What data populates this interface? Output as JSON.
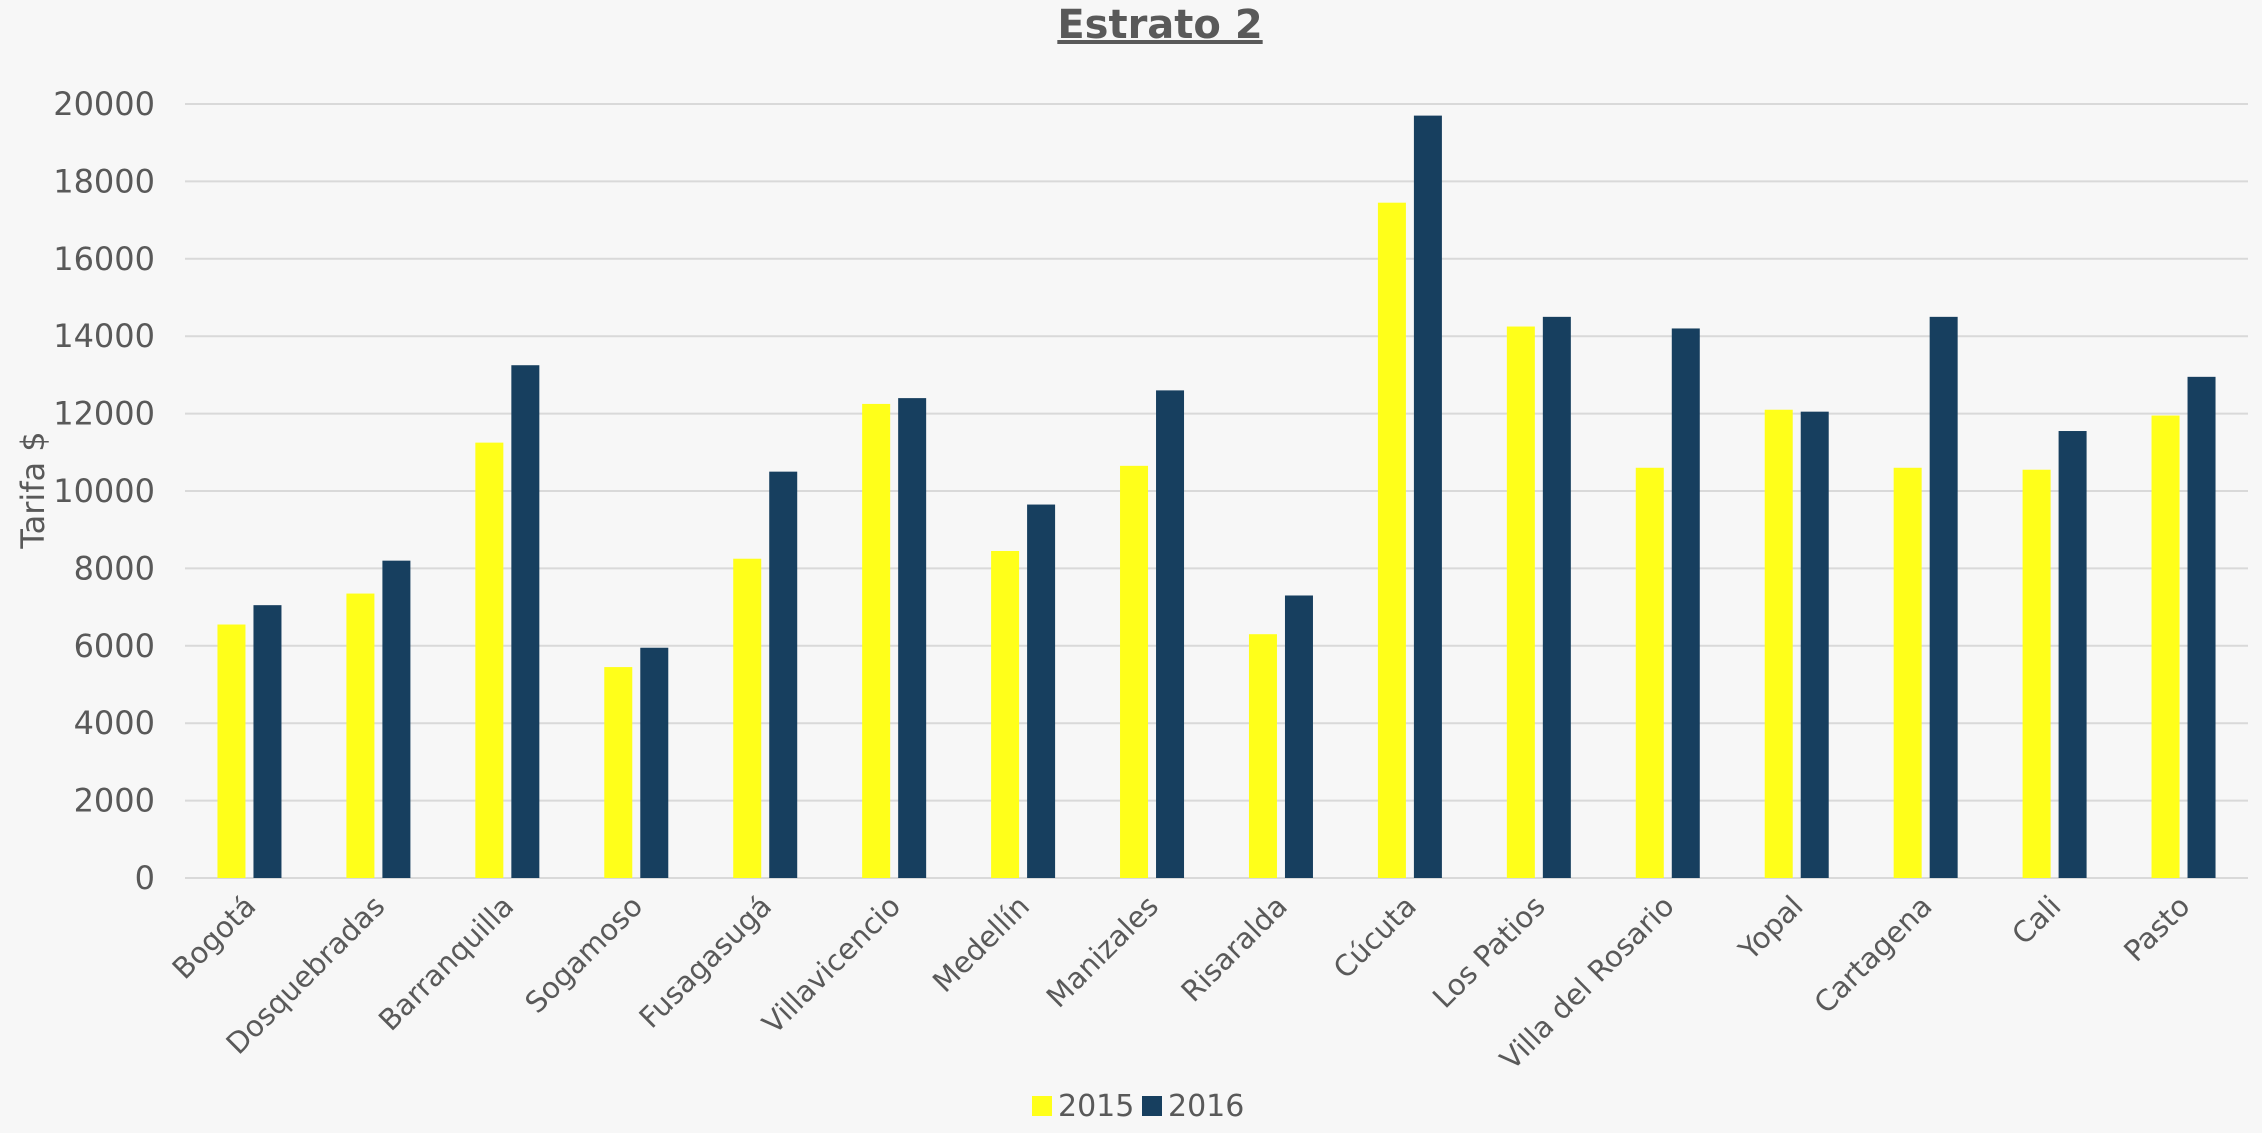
{
  "chart_data": {
    "type": "bar",
    "title": "Estrato 2",
    "xlabel": "",
    "ylabel": "Tarifa $",
    "ylim": [
      0,
      20000
    ],
    "yticks": [
      0,
      2000,
      4000,
      6000,
      8000,
      10000,
      12000,
      14000,
      16000,
      18000,
      20000
    ],
    "grid": true,
    "legend_position": "bottom",
    "categories": [
      "Bogotá",
      "Dosquebradas",
      "Barranquilla",
      "Sogamoso",
      "Fusagasugá",
      "Villavicencio",
      "Medellín",
      "Manizales",
      "Risaralda",
      "Cúcuta",
      "Los Patios",
      "Villa del Rosario",
      "Yopal",
      "Cartagena",
      "Cali",
      "Pasto"
    ],
    "series": [
      {
        "name": "2015",
        "color": "#ffff1a",
        "values": [
          6550,
          7350,
          11250,
          5450,
          8250,
          12250,
          8450,
          10650,
          6300,
          17450,
          14250,
          10600,
          12100,
          10600,
          10550,
          11950
        ]
      },
      {
        "name": "2016",
        "color": "#173f5f",
        "values": [
          7050,
          8200,
          13250,
          5950,
          10500,
          12400,
          9650,
          12600,
          7300,
          19700,
          14500,
          14200,
          12050,
          14500,
          11550,
          12950
        ]
      }
    ]
  }
}
